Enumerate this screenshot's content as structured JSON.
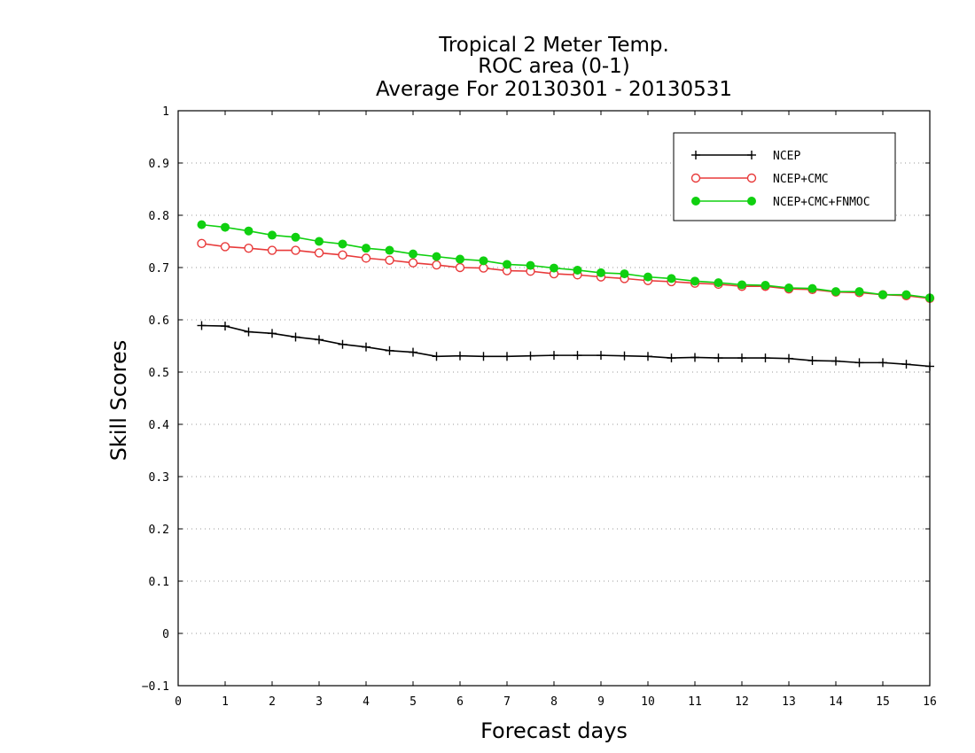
{
  "chart_data": {
    "type": "line",
    "title_lines": [
      "Tropical 2 Meter Temp.",
      "ROC area (0-1)",
      "Average For 20130301 - 20130531"
    ],
    "xlabel": "Forecast days",
    "ylabel": "Skill Scores",
    "xlim": [
      0,
      16
    ],
    "ylim": [
      -0.1,
      1
    ],
    "xticks": [
      "0",
      "1",
      "2",
      "3",
      "4",
      "5",
      "6",
      "7",
      "8",
      "9",
      "10",
      "11",
      "12",
      "13",
      "14",
      "15",
      "16"
    ],
    "yticks": [
      "-0.1",
      "0",
      "0.1",
      "0.2",
      "0.3",
      "0.4",
      "0.5",
      "0.6",
      "0.7",
      "0.8",
      "0.9",
      "1"
    ],
    "grid": "horizontal dotted",
    "legend_position": "top-right",
    "x": [
      0.5,
      1,
      1.5,
      2,
      2.5,
      3,
      3.5,
      4,
      4.5,
      5,
      5.5,
      6,
      6.5,
      7,
      7.5,
      8,
      8.5,
      9,
      9.5,
      10,
      10.5,
      11,
      11.5,
      12,
      12.5,
      13,
      13.5,
      14,
      14.5,
      15,
      15.5,
      16
    ],
    "series": [
      {
        "name": "NCEP",
        "color": "#000000",
        "marker": "plus",
        "values": [
          0.589,
          0.588,
          0.577,
          0.574,
          0.567,
          0.562,
          0.553,
          0.548,
          0.541,
          0.538,
          0.53,
          0.531,
          0.53,
          0.53,
          0.531,
          0.532,
          0.532,
          0.532,
          0.531,
          0.53,
          0.527,
          0.528,
          0.527,
          0.527,
          0.527,
          0.526,
          0.522,
          0.521,
          0.518,
          0.518,
          0.515,
          0.511
        ]
      },
      {
        "name": "NCEP+CMC",
        "color": "#e83a3a",
        "marker": "open-circle",
        "values": [
          0.746,
          0.74,
          0.737,
          0.733,
          0.733,
          0.728,
          0.724,
          0.718,
          0.714,
          0.709,
          0.705,
          0.7,
          0.699,
          0.694,
          0.693,
          0.688,
          0.686,
          0.682,
          0.679,
          0.675,
          0.673,
          0.67,
          0.668,
          0.664,
          0.664,
          0.659,
          0.658,
          0.653,
          0.652,
          0.648,
          0.646,
          0.641
        ]
      },
      {
        "name": "NCEP+CMC+FNMOC",
        "color": "#10d010",
        "marker": "filled-circle",
        "values": [
          0.782,
          0.777,
          0.77,
          0.762,
          0.758,
          0.75,
          0.745,
          0.737,
          0.733,
          0.726,
          0.721,
          0.716,
          0.713,
          0.706,
          0.704,
          0.699,
          0.695,
          0.69,
          0.688,
          0.682,
          0.679,
          0.674,
          0.671,
          0.667,
          0.666,
          0.661,
          0.66,
          0.654,
          0.654,
          0.648,
          0.648,
          0.642
        ]
      }
    ]
  }
}
